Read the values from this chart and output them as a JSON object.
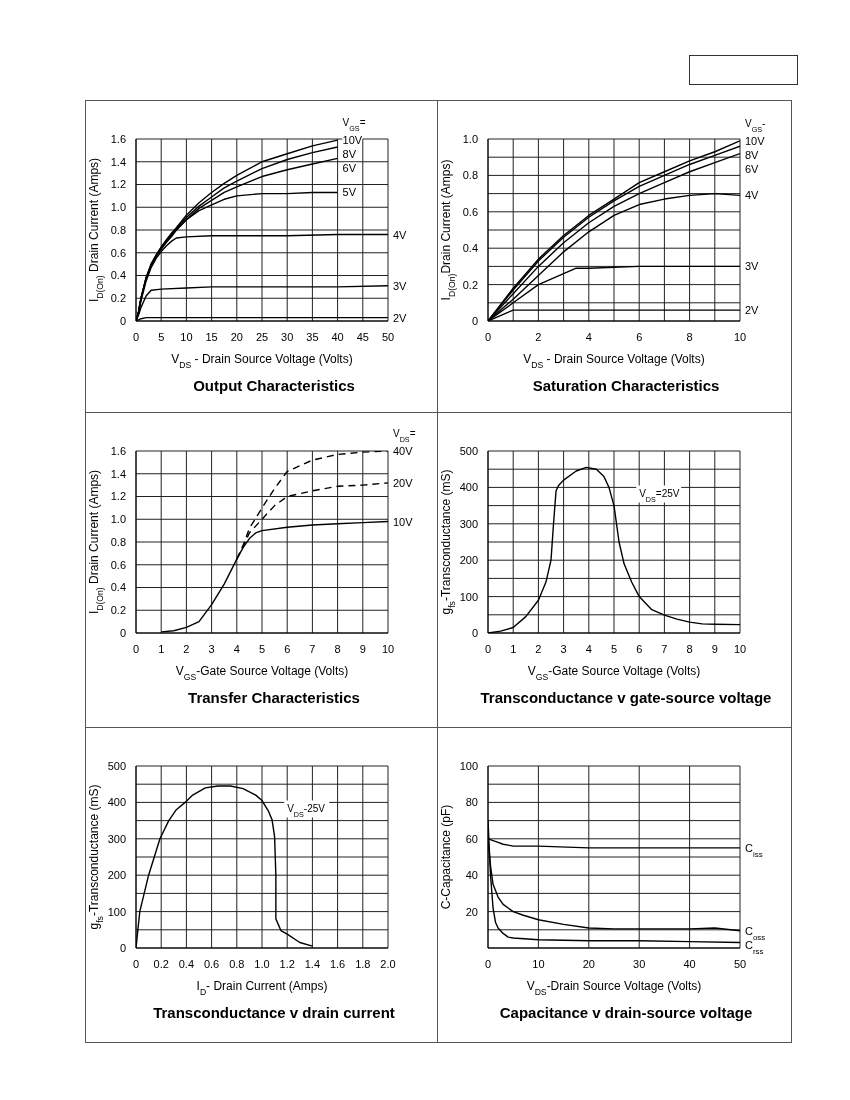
{
  "chart_data": [
    {
      "type": "line",
      "title": "Output Characteristics",
      "xlabel": "V$_{DS}$ - Drain Source Voltage (Volts)",
      "ylabel": "I$_{D(On)}$ Drain Current (Amps)",
      "legend_title": "V$_{GS}$=",
      "xlim": [
        0,
        50
      ],
      "xticks": [
        0,
        5,
        10,
        15,
        20,
        25,
        30,
        35,
        40,
        45,
        50
      ],
      "ylim": [
        0,
        1.6
      ],
      "yticks": [
        0,
        0.2,
        0.4,
        0.6,
        0.8,
        {
          "value": 1,
          "label": "1.0"
        },
        1.2,
        1.4,
        1.6
      ],
      "grid": true,
      "marker": "none",
      "line_style": "solid",
      "series": [
        {
          "name": "10V",
          "color": "#000000",
          "x": [
            0,
            0.5,
            1,
            2,
            3,
            4,
            5,
            6,
            7,
            8,
            10,
            12.5,
            15,
            17.5,
            20,
            25,
            30,
            35,
            40
          ],
          "values": [
            0,
            0.08,
            0.2,
            0.38,
            0.5,
            0.58,
            0.65,
            0.71,
            0.77,
            0.82,
            0.93,
            1.04,
            1.13,
            1.21,
            1.28,
            1.4,
            1.47,
            1.54,
            1.59
          ]
        },
        {
          "name": "8V",
          "color": "#000000",
          "x": [
            0,
            0.5,
            1,
            2,
            3,
            4,
            5,
            6,
            7,
            8,
            10,
            12.5,
            15,
            17.5,
            20,
            25,
            30,
            35,
            40
          ],
          "values": [
            0,
            0.08,
            0.2,
            0.38,
            0.5,
            0.58,
            0.65,
            0.71,
            0.76,
            0.81,
            0.91,
            1.01,
            1.09,
            1.17,
            1.23,
            1.34,
            1.42,
            1.48,
            1.53
          ]
        },
        {
          "name": "6V",
          "color": "#000000",
          "x": [
            0,
            0.5,
            1,
            2,
            3,
            4,
            5,
            6,
            7,
            8,
            10,
            12.5,
            15,
            17.5,
            20,
            25,
            30,
            35,
            40
          ],
          "values": [
            0,
            0.08,
            0.2,
            0.37,
            0.49,
            0.57,
            0.64,
            0.7,
            0.75,
            0.8,
            0.89,
            0.99,
            1.06,
            1.13,
            1.18,
            1.27,
            1.33,
            1.38,
            1.43
          ]
        },
        {
          "name": "5V",
          "color": "#000000",
          "x": [
            0,
            0.5,
            1,
            2,
            3,
            4,
            5,
            6,
            7,
            8,
            10,
            12.5,
            15,
            17.5,
            20,
            25,
            30,
            35,
            40
          ],
          "values": [
            0,
            0.08,
            0.2,
            0.37,
            0.49,
            0.57,
            0.63,
            0.69,
            0.74,
            0.8,
            0.89,
            0.97,
            1.02,
            1.07,
            1.1,
            1.12,
            1.12,
            1.13,
            1.13
          ]
        },
        {
          "name": "4V",
          "color": "#000000",
          "x": [
            0,
            0.5,
            1,
            2,
            3,
            4,
            5,
            6,
            7,
            8,
            10,
            15,
            20,
            30,
            40,
            50
          ],
          "values": [
            0,
            0.07,
            0.18,
            0.35,
            0.47,
            0.55,
            0.61,
            0.66,
            0.7,
            0.73,
            0.74,
            0.75,
            0.75,
            0.75,
            0.76,
            0.76
          ]
        },
        {
          "name": "3V",
          "color": "#000000",
          "x": [
            0,
            0.5,
            1,
            2,
            3,
            5,
            10,
            15,
            20,
            30,
            40,
            50
          ],
          "values": [
            0,
            0.05,
            0.12,
            0.22,
            0.27,
            0.28,
            0.29,
            0.3,
            0.3,
            0.3,
            0.3,
            0.31
          ]
        },
        {
          "name": "2V",
          "color": "#000000",
          "x": [
            0,
            0.5,
            1,
            2,
            5,
            10,
            20,
            30,
            40,
            50
          ],
          "values": [
            0,
            0.01,
            0.02,
            0.03,
            0.03,
            0.03,
            0.03,
            0.03,
            0.03,
            0.03
          ]
        }
      ]
    },
    {
      "type": "line",
      "title": "Saturation Characteristics",
      "xlabel": "V$_{DS}$ - Drain Source Voltage (Volts)",
      "ylabel": "I$_{D(On)}$Drain Current (Amps)",
      "legend_title": "V$_{GS}$-",
      "xlim": [
        0,
        10
      ],
      "xticks": [
        0,
        {
          "value": 1,
          "label": null
        },
        2,
        {
          "value": 3,
          "label": null
        },
        4,
        {
          "value": 5,
          "label": null
        },
        6,
        {
          "value": 7,
          "label": null
        },
        8,
        {
          "value": 9,
          "label": null
        },
        10
      ],
      "ylim": [
        0,
        1
      ],
      "yticks": [
        0,
        {
          "value": 0.1,
          "label": null
        },
        0.2,
        {
          "value": 0.3,
          "label": null
        },
        0.4,
        {
          "value": 0.5,
          "label": null
        },
        0.6,
        {
          "value": 0.7,
          "label": null
        },
        0.8,
        {
          "value": 0.9,
          "label": null
        },
        {
          "value": 1,
          "label": "1.0"
        }
      ],
      "grid": true,
      "marker": "none",
      "line_style": "solid",
      "series": [
        {
          "name": "10V",
          "color": "#000000",
          "x": [
            0,
            1,
            2,
            3,
            4,
            5,
            6,
            7,
            8,
            9,
            10
          ],
          "values": [
            0,
            0.18,
            0.34,
            0.47,
            0.58,
            0.67,
            0.76,
            0.82,
            0.88,
            0.93,
            0.99
          ]
        },
        {
          "name": "8V",
          "color": "#000000",
          "x": [
            0,
            1,
            2,
            3,
            4,
            5,
            6,
            7,
            8,
            9,
            10
          ],
          "values": [
            0,
            0.17,
            0.33,
            0.46,
            0.57,
            0.66,
            0.74,
            0.8,
            0.86,
            0.91,
            0.96
          ]
        },
        {
          "name": "6V",
          "color": "#000000",
          "x": [
            0,
            1,
            2,
            3,
            4,
            5,
            6,
            7,
            8,
            9,
            10
          ],
          "values": [
            0,
            0.15,
            0.3,
            0.43,
            0.54,
            0.63,
            0.7,
            0.76,
            0.82,
            0.87,
            0.92
          ]
        },
        {
          "name": "4V",
          "color": "#000000",
          "x": [
            0,
            1,
            2,
            3,
            4,
            5,
            6,
            7,
            8,
            9,
            10
          ],
          "values": [
            0,
            0.12,
            0.25,
            0.38,
            0.49,
            0.58,
            0.64,
            0.67,
            0.69,
            0.7,
            0.69
          ]
        },
        {
          "name": "3V",
          "color": "#000000",
          "x": [
            0,
            1,
            2,
            3,
            3.5,
            4,
            6,
            8,
            10
          ],
          "values": [
            0,
            0.1,
            0.2,
            0.26,
            0.29,
            0.29,
            0.3,
            0.3,
            0.3
          ]
        },
        {
          "name": "2V",
          "color": "#000000",
          "x": [
            0,
            1,
            2,
            4,
            6,
            8,
            10
          ],
          "values": [
            0,
            0.06,
            0.06,
            0.06,
            0.06,
            0.06,
            0.06
          ]
        }
      ]
    },
    {
      "type": "line",
      "title": "Transfer Characteristics",
      "xlabel": "V$_{GS}$-Gate Source Voltage (Volts)",
      "ylabel": "I$_{D(On)}$ Drain Current (Amps)",
      "legend_title": "V$_{DS}$=",
      "xlim": [
        0,
        10
      ],
      "xticks": [
        0,
        1,
        2,
        3,
        4,
        5,
        6,
        7,
        8,
        9,
        10
      ],
      "ylim": [
        0,
        1.6
      ],
      "yticks": [
        0,
        0.2,
        0.4,
        0.6,
        0.8,
        {
          "value": 1,
          "label": "1.0"
        },
        1.2,
        1.4,
        1.6
      ],
      "grid": true,
      "marker": "none",
      "line_style": "solid",
      "series": [
        {
          "name": "40V",
          "color": "#000000",
          "line_style": "dashed",
          "x": [
            4,
            4.25,
            4.5,
            5,
            5.5,
            6,
            7,
            8,
            9,
            10
          ],
          "values": [
            0.65,
            0.77,
            0.92,
            1.1,
            1.27,
            1.42,
            1.52,
            1.57,
            1.59,
            1.6
          ]
        },
        {
          "name": "20V",
          "color": "#000000",
          "line_style": "dashed",
          "x": [
            4,
            4.25,
            4.5,
            5,
            5.5,
            6,
            7,
            8,
            9,
            10
          ],
          "values": [
            0.65,
            0.76,
            0.88,
            1,
            1.12,
            1.2,
            1.25,
            1.29,
            1.3,
            1.32
          ]
        },
        {
          "name": "10V",
          "color": "#000000",
          "x": [
            1,
            1.5,
            2,
            2.5,
            3,
            3.5,
            4,
            4.25,
            4.5,
            4.75,
            5,
            6,
            7,
            8,
            9,
            10
          ],
          "values": [
            0.01,
            0.02,
            0.05,
            0.1,
            0.25,
            0.43,
            0.65,
            0.75,
            0.83,
            0.88,
            0.9,
            0.93,
            0.95,
            0.96,
            0.97,
            0.98
          ]
        }
      ]
    },
    {
      "type": "line",
      "title": "Transconductance v gate-source voltage",
      "xlabel": "V$_{GS}$-Gate Source Voltage (Volts)",
      "ylabel": "g$_{fs}$-Transconductance (mS)",
      "annotations": [
        "V$_{DS}$=25V"
      ],
      "xlim": [
        0,
        10
      ],
      "xticks": [
        0,
        1,
        2,
        3,
        4,
        5,
        6,
        7,
        8,
        9,
        10
      ],
      "ylim": [
        0,
        500
      ],
      "yticks": [
        0,
        {
          "value": 50,
          "label": null
        },
        100,
        {
          "value": 150,
          "label": null
        },
        200,
        {
          "value": 250,
          "label": null
        },
        300,
        {
          "value": 350,
          "label": null
        },
        400,
        {
          "value": 450,
          "label": null
        },
        500
      ],
      "grid": true,
      "marker": "none",
      "line_style": "solid",
      "color": "#000000",
      "x": [
        0,
        0.5,
        1,
        1.5,
        2,
        2.3,
        2.5,
        2.6,
        2.7,
        2.8,
        3,
        3.5,
        3.9,
        4.3,
        4.6,
        4.8,
        5,
        5.2,
        5.4,
        5.7,
        6,
        6.5,
        7,
        7.5,
        8,
        8.5,
        9,
        10
      ],
      "values": [
        0,
        5,
        15,
        45,
        90,
        140,
        200,
        300,
        390,
        405,
        420,
        445,
        455,
        450,
        430,
        400,
        350,
        250,
        190,
        140,
        100,
        64,
        49,
        38,
        30,
        25,
        24,
        23
      ]
    },
    {
      "type": "line",
      "title": "Transconductance v drain current",
      "xlabel": "I$_{D}$- Drain Current (Amps)",
      "ylabel": "g$_{fs}$-Transconductance (mS)",
      "annotations": [
        "V$_{DS}$-25V"
      ],
      "xlim": [
        0,
        2
      ],
      "xticks": [
        0,
        0.2,
        0.4,
        0.6,
        0.8,
        {
          "value": 1,
          "label": "1.0"
        },
        1.2,
        1.4,
        1.6,
        1.8,
        {
          "value": 2,
          "label": "2.0"
        }
      ],
      "ylim": [
        0,
        500
      ],
      "yticks": [
        0,
        {
          "value": 50,
          "label": null
        },
        100,
        {
          "value": 150,
          "label": null
        },
        200,
        {
          "value": 250,
          "label": null
        },
        300,
        {
          "value": 350,
          "label": null
        },
        400,
        {
          "value": 450,
          "label": null
        },
        500
      ],
      "grid": true,
      "marker": "none",
      "line_style": "solid",
      "color": "#000000",
      "x": [
        0,
        0.03,
        0.1,
        0.19,
        0.26,
        0.32,
        0.39,
        0.45,
        0.55,
        0.65,
        0.75,
        0.85,
        0.95,
        1,
        1.05,
        1.08,
        1.1,
        1.11,
        1.11,
        1.15,
        1.2,
        1.3,
        1.4
      ],
      "values": [
        0,
        100,
        200,
        300,
        350,
        380,
        400,
        420,
        440,
        445,
        445,
        438,
        420,
        405,
        377,
        352,
        306,
        200,
        80,
        48,
        38,
        15,
        5
      ]
    },
    {
      "type": "line",
      "title": "Capacitance v drain-source voltage",
      "xlabel": "V$_{DS}$-Drain Source Voltage (Volts)",
      "ylabel": "C-Capacitance (pF)",
      "xlim": [
        0,
        50
      ],
      "xticks": [
        0,
        10,
        20,
        30,
        40,
        50
      ],
      "ylim": [
        0,
        100
      ],
      "yticks": [
        {
          "value": 0,
          "label": null
        },
        {
          "value": 10,
          "label": null
        },
        20,
        {
          "value": 30,
          "label": null
        },
        40,
        {
          "value": 50,
          "label": null
        },
        60,
        {
          "value": 70,
          "label": null
        },
        80,
        {
          "value": 90,
          "label": null
        },
        100
      ],
      "grid": true,
      "marker": "none",
      "line_style": "solid",
      "series": [
        {
          "name": "C$_{iss}$",
          "color": "#000000",
          "x": [
            0,
            1,
            2,
            3,
            4,
            5,
            10,
            20,
            30,
            40,
            50
          ],
          "values": [
            60,
            59,
            58,
            57,
            56.5,
            56,
            56,
            55,
            55,
            55,
            55
          ]
        },
        {
          "name": "C$_{oss}$",
          "color": "#000000",
          "x": [
            0,
            0.5,
            1,
            2,
            3,
            4,
            5,
            7,
            10,
            15,
            20,
            25,
            30,
            40,
            45,
            50
          ],
          "values": [
            60,
            45,
            35,
            28,
            24,
            22,
            20,
            18,
            15.5,
            13,
            11,
            10.5,
            10.5,
            10.5,
            11,
            9.5
          ]
        },
        {
          "name": "C$_{rss}$",
          "color": "#000000",
          "x": [
            0,
            0.5,
            1,
            1.5,
            2,
            3,
            4,
            5,
            10,
            20,
            30,
            40,
            50
          ],
          "values": [
            70,
            40,
            22,
            14,
            11,
            8,
            6,
            5.5,
            4.5,
            4,
            4,
            3.5,
            3
          ]
        }
      ]
    }
  ]
}
